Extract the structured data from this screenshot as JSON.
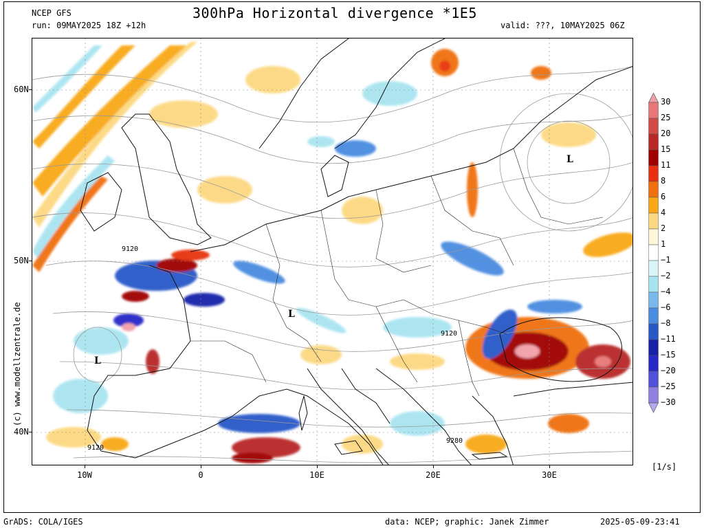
{
  "header": {
    "model": "NCEP GFS",
    "run": "run: 09MAY2025 18Z +12h",
    "title": "300hPa Horizontal divergence *1E5",
    "valid": "valid: ???, 10MAY2025 06Z"
  },
  "map": {
    "lat_labels": [
      "60N",
      "50N",
      "40N"
    ],
    "lon_labels": [
      "10W",
      "0",
      "10E",
      "20E",
      "30E"
    ],
    "pressure_labels": [
      "L",
      "L",
      "L"
    ],
    "height_labels": [
      "9120",
      "9120",
      "9120",
      "9280"
    ],
    "credit": "(c) www.modellzentrale.de"
  },
  "legend": {
    "labels": [
      "30",
      "25",
      "20",
      "15",
      "11",
      "8",
      "6",
      "4",
      "2",
      "1",
      "-1",
      "-2",
      "-4",
      "-6",
      "-8",
      "-11",
      "-15",
      "-20",
      "-25",
      "-30"
    ],
    "colors": [
      "#f2a0a8",
      "#e87878",
      "#d04a48",
      "#b82828",
      "#a00000",
      "#e83010",
      "#f07010",
      "#f8a818",
      "#fcd880",
      "#fff5d8",
      "#ffffff",
      "#d8f4f8",
      "#a8e4f0",
      "#78b8ec",
      "#4a8ce0",
      "#2858c8",
      "#1820a8",
      "#2828c8",
      "#5050d8",
      "#9080e0",
      "#b8a8f0"
    ],
    "units": "[1/s]"
  },
  "footer": {
    "left": "GrADS: COLA/IGES",
    "data": "data: NCEP; graphic: Janek Zimmer",
    "timestamp": "2025-05-09-23:41"
  }
}
